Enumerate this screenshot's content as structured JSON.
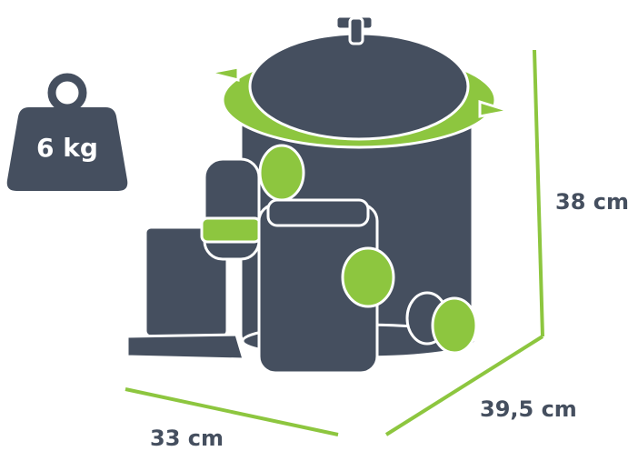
{
  "weight": "6 kg",
  "dimensions": {
    "height": "38 cm",
    "depth": "39,5 cm",
    "width": "33 cm"
  }
}
